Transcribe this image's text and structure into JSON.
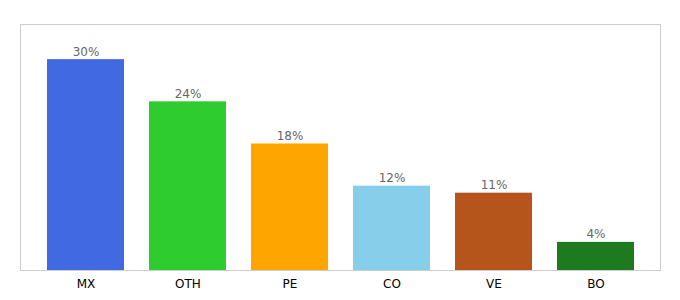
{
  "chart_data": {
    "type": "bar",
    "categories": [
      "MX",
      "OTH",
      "PE",
      "CO",
      "VE",
      "BO"
    ],
    "values": [
      30,
      24,
      18,
      12,
      11,
      4
    ],
    "value_labels": [
      "30%",
      "24%",
      "18%",
      "12%",
      "11%",
      "4%"
    ],
    "colors": [
      "#4169e1",
      "#2ecc2e",
      "#ffa500",
      "#87ceeb",
      "#b5541b",
      "#1e7a1e"
    ],
    "ylim": [
      0,
      35
    ],
    "grid": false,
    "data_labels": true,
    "tick_labels": "x"
  }
}
